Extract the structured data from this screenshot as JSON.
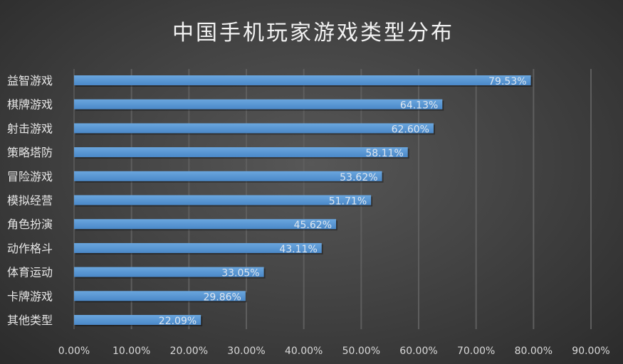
{
  "chart_data": {
    "type": "bar",
    "orientation": "horizontal",
    "title": "中国手机玩家游戏类型分布",
    "categories": [
      "益智游戏",
      "棋牌游戏",
      "射击游戏",
      "策略塔防",
      "冒险游戏",
      "模拟经营",
      "角色扮演",
      "动作格斗",
      "体育运动",
      "卡牌游戏",
      "其他类型"
    ],
    "values": [
      79.53,
      64.13,
      62.6,
      58.11,
      53.62,
      51.71,
      45.62,
      43.11,
      33.05,
      29.86,
      22.09
    ],
    "data_labels": [
      "79.53%",
      "64.13%",
      "62.60%",
      "58.11%",
      "53.62%",
      "51.71%",
      "45.62%",
      "43.11%",
      "33.05%",
      "29.86%",
      "22.09%"
    ],
    "xlim": [
      0,
      90
    ],
    "x_ticks": [
      "0.00%",
      "10.00%",
      "20.00%",
      "30.00%",
      "40.00%",
      "50.00%",
      "60.00%",
      "70.00%",
      "80.00%",
      "90.00%"
    ],
    "grid": true,
    "bar_color": "#5b9bd5",
    "xlabel": "",
    "ylabel": ""
  }
}
